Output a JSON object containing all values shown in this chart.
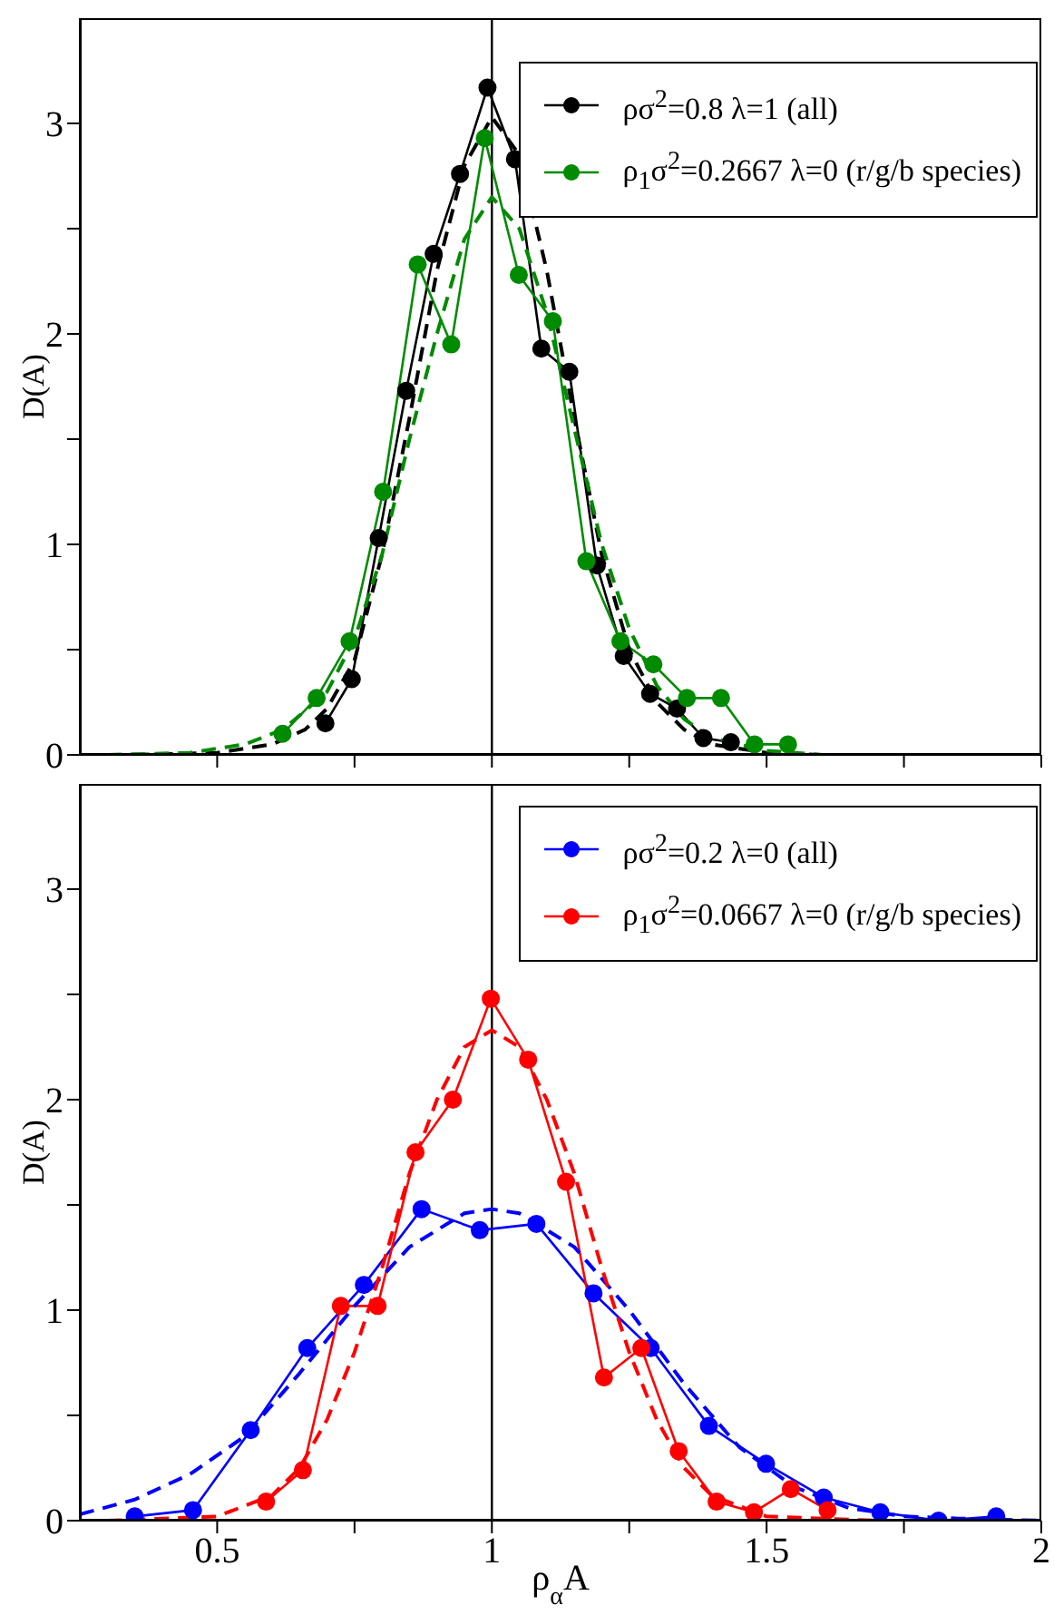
{
  "chart_data": [
    {
      "type": "line",
      "ylabel": "D(A)",
      "xlim": [
        0.25,
        2
      ],
      "ylim": [
        0,
        3.5
      ],
      "xticks": [
        0.5,
        0.75,
        1,
        1.25,
        1.5,
        1.75,
        2
      ],
      "yticks": [
        0,
        {
          "value": 0.5,
          "label": null
        },
        1,
        {
          "value": 1.5,
          "label": null
        },
        2,
        {
          "value": 2.5,
          "label": null
        },
        3
      ],
      "tick_labels": "y",
      "marker": "circle",
      "legend": "top right",
      "ref_lines": [
        {
          "axis": "x",
          "value": 1,
          "color": "#000000"
        }
      ],
      "series": [
        {
          "name": "ρσ$^{2}$=0.8 λ=1 (all)",
          "color": "#000000",
          "x": [
            0.697,
            0.745,
            0.794,
            0.844,
            0.894,
            0.942,
            0.992,
            1.042,
            1.09,
            1.141,
            1.191,
            1.24,
            1.288,
            1.337,
            1.385,
            1.435
          ],
          "values": [
            0.15,
            0.36,
            1.03,
            1.73,
            2.38,
            2.76,
            3.17,
            2.83,
            1.93,
            1.82,
            0.9,
            0.47,
            0.29,
            0.22,
            0.08,
            0.06
          ]
        },
        {
          "name": "ρ$_{1}$σ$^{2}$=0.2667 λ=0 (r/g/b species)",
          "color": "#008b00",
          "x": [
            0.619,
            0.681,
            0.741,
            0.802,
            0.865,
            0.926,
            0.987,
            1.049,
            1.111,
            1.172,
            1.234,
            1.294,
            1.355,
            1.417,
            1.478,
            1.539
          ],
          "values": [
            0.1,
            0.27,
            0.54,
            1.25,
            2.33,
            1.95,
            2.93,
            2.28,
            2.06,
            0.92,
            0.54,
            0.43,
            0.27,
            0.27,
            0.05,
            0.05
          ]
        },
        {
          "color": "#000000",
          "line_style": "dashed",
          "marker": "none",
          "x": [
            0.35,
            0.5,
            0.6,
            0.66,
            0.7,
            0.75,
            0.8,
            0.85,
            0.9,
            0.95,
            1.0,
            1.05,
            1.1,
            1.15,
            1.2,
            1.25,
            1.3,
            1.35,
            1.4,
            1.5,
            1.6
          ],
          "values": [
            0,
            0.01,
            0.05,
            0.12,
            0.22,
            0.45,
            0.95,
            1.6,
            2.3,
            2.8,
            3.03,
            2.85,
            2.3,
            1.6,
            0.95,
            0.5,
            0.25,
            0.12,
            0.05,
            0.01,
            0
          ]
        },
        {
          "color": "#008b00",
          "line_style": "dashed",
          "marker": "none",
          "x": [
            0.3,
            0.45,
            0.55,
            0.62,
            0.7,
            0.75,
            0.8,
            0.85,
            0.9,
            0.95,
            1.0,
            1.05,
            1.1,
            1.15,
            1.2,
            1.25,
            1.3,
            1.35,
            1.4,
            1.5,
            1.6
          ],
          "values": [
            0,
            0.01,
            0.05,
            0.12,
            0.3,
            0.55,
            0.95,
            1.5,
            2.0,
            2.45,
            2.65,
            2.5,
            2.1,
            1.55,
            1.0,
            0.6,
            0.33,
            0.17,
            0.08,
            0.02,
            0
          ]
        }
      ]
    },
    {
      "type": "line",
      "xlabel": "ρ$_{α}$A",
      "ylabel": "D(A)",
      "xlim": [
        0.25,
        2
      ],
      "ylim": [
        0,
        3.5
      ],
      "xticks": [
        0.5,
        {
          "value": 0.75,
          "label": null
        },
        1,
        {
          "value": 1.25,
          "label": null
        },
        1.5,
        {
          "value": 1.75,
          "label": null
        },
        2
      ],
      "yticks": [
        0,
        {
          "value": 0.5,
          "label": null
        },
        1,
        {
          "value": 1.5,
          "label": null
        },
        2,
        {
          "value": 2.5,
          "label": null
        },
        3
      ],
      "marker": "circle",
      "legend": "top right",
      "ref_lines": [
        {
          "axis": "x",
          "value": 1,
          "color": "#000000"
        }
      ],
      "series": [
        {
          "name": "ρσ$^{2}$=0.2 λ=0 (all)",
          "color": "#0000ff",
          "x": [
            0.35,
            0.456,
            0.561,
            0.664,
            0.767,
            0.872,
            0.978,
            1.081,
            1.185,
            1.289,
            1.395,
            1.499,
            1.604,
            1.707,
            1.813,
            1.918
          ],
          "values": [
            0.02,
            0.05,
            0.43,
            0.82,
            1.12,
            1.48,
            1.38,
            1.41,
            1.08,
            0.82,
            0.45,
            0.27,
            0.11,
            0.04,
            0,
            0.02
          ]
        },
        {
          "name": "ρ$_{1}$σ$^{2}$=0.0667 λ=0 (r/g/b species)",
          "color": "#ff0000",
          "x": [
            0.589,
            0.656,
            0.725,
            0.792,
            0.861,
            0.929,
            0.998,
            1.066,
            1.135,
            1.204,
            1.272,
            1.34,
            1.409,
            1.477,
            1.544,
            1.611
          ],
          "values": [
            0.09,
            0.24,
            1.02,
            1.02,
            1.75,
            2.0,
            2.48,
            2.19,
            1.61,
            0.68,
            0.82,
            0.33,
            0.09,
            0.04,
            0.15,
            0.05
          ]
        },
        {
          "color": "#0000ff",
          "line_style": "dashed",
          "marker": "none",
          "x": [
            0.25,
            0.35,
            0.45,
            0.55,
            0.65,
            0.75,
            0.85,
            0.95,
            1.0,
            1.05,
            1.15,
            1.25,
            1.35,
            1.45,
            1.55,
            1.65,
            1.75,
            1.85,
            2.0
          ],
          "values": [
            0.03,
            0.1,
            0.22,
            0.4,
            0.7,
            1.02,
            1.3,
            1.46,
            1.48,
            1.46,
            1.3,
            1.0,
            0.65,
            0.35,
            0.16,
            0.06,
            0.02,
            0.01,
            0
          ]
        },
        {
          "color": "#ff0000",
          "line_style": "dashed",
          "marker": "none",
          "x": [
            0.3,
            0.5,
            0.6,
            0.65,
            0.7,
            0.75,
            0.8,
            0.85,
            0.9,
            0.95,
            1.0,
            1.05,
            1.1,
            1.15,
            1.2,
            1.25,
            1.3,
            1.35,
            1.4,
            1.5,
            1.7
          ],
          "values": [
            0,
            0.02,
            0.12,
            0.25,
            0.48,
            0.8,
            1.2,
            1.65,
            2.0,
            2.25,
            2.33,
            2.25,
            2.0,
            1.65,
            1.2,
            0.8,
            0.48,
            0.25,
            0.12,
            0.02,
            0
          ]
        }
      ]
    }
  ]
}
